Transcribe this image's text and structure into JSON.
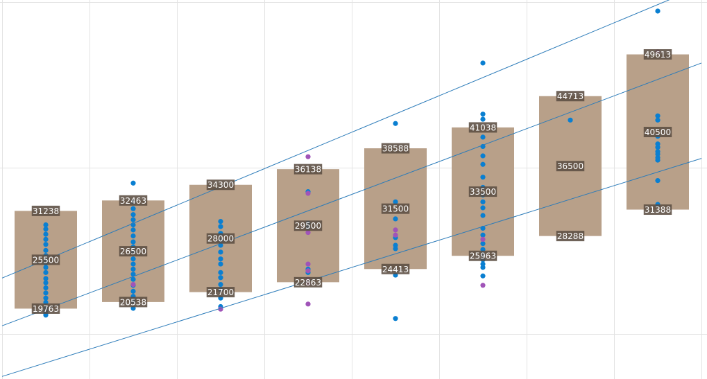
{
  "chart_data": {
    "type": "box-scatter",
    "title": "",
    "xlabel": "",
    "ylabel": "",
    "xlim": [
      0.5,
      8.5
    ],
    "ylim": [
      11500,
      56000
    ],
    "grid": true,
    "colors": {
      "box": "#b8a089",
      "point_primary": "#0a7fd1",
      "point_secondary": "#a054b8",
      "trend": "#2b7bb9",
      "label_bg": "#5b4d42"
    },
    "boxes": [
      {
        "group": 1,
        "q1": 19763,
        "median": 25500,
        "q3": 31238,
        "q1_label": "19763",
        "median_label": "25500",
        "q3_label": "31238"
      },
      {
        "group": 2,
        "q1": 20538,
        "median": 26500,
        "q3": 32463,
        "q1_label": "20538",
        "median_label": "26500",
        "q3_label": "32463"
      },
      {
        "group": 3,
        "q1": 21700,
        "median": 28000,
        "q3": 34300,
        "q1_label": "21700",
        "median_label": "28000",
        "q3_label": "34300"
      },
      {
        "group": 4,
        "q1": 22863,
        "median": 29500,
        "q3": 36138,
        "q1_label": "22863",
        "median_label": "29500",
        "q3_label": "36138"
      },
      {
        "group": 5,
        "q1": 24413,
        "median": 31500,
        "q3": 38588,
        "q1_label": "24413",
        "median_label": "31500",
        "q3_label": "38588"
      },
      {
        "group": 6,
        "q1": 25963,
        "median": 33500,
        "q3": 41038,
        "q1_label": "25963",
        "median_label": "33500",
        "q3_label": "41038"
      },
      {
        "group": 7,
        "q1": 28288,
        "median": 36500,
        "q3": 44713,
        "q1_label": "28288",
        "median_label": "36500",
        "q3_label": "44713"
      },
      {
        "group": 8,
        "q1": 31388,
        "median": 40500,
        "q3": 49613,
        "q1_label": "31388",
        "median_label": "40500",
        "q3_label": "49613"
      }
    ],
    "points": [
      {
        "group": 1,
        "values": [
          19000,
          19200,
          19500,
          19800,
          20500,
          21000,
          21600,
          22200,
          22800,
          23300,
          24000,
          24600,
          25100,
          25500,
          26000,
          26600,
          27300,
          27900,
          28500,
          29100,
          29600
        ],
        "secondary": []
      },
      {
        "group": 2,
        "values": [
          19800,
          20600,
          21200,
          21800,
          22500,
          23200,
          23800,
          24400,
          25000,
          25600,
          26400,
          27000,
          27600,
          28300,
          29000,
          29600,
          30200,
          30800,
          31500,
          32300,
          34500
        ],
        "secondary": [
          22600
        ]
      },
      {
        "group": 3,
        "values": [
          20000,
          21000,
          22000,
          22600,
          23400,
          24000,
          25000,
          25600,
          26400,
          27200,
          27800,
          28600,
          29400,
          30000
        ],
        "secondary": [
          19700
        ]
      },
      {
        "group": 4,
        "values": [
          24000,
          24400,
          29300,
          29800,
          33500
        ],
        "secondary": [
          20300,
          22700,
          23200,
          24200,
          25000,
          28700,
          33300,
          37600
        ]
      },
      {
        "group": 5,
        "values": [
          18600,
          23700,
          26800,
          27200,
          28100,
          30300,
          32300,
          41500
        ],
        "secondary": [
          28400,
          29000
        ]
      },
      {
        "group": 6,
        "values": [
          23600,
          24600,
          25000,
          25500,
          26100,
          26700,
          27400,
          28400,
          29200,
          30700,
          31600,
          32300,
          33100,
          34000,
          35200,
          36700,
          37700,
          38800,
          39900,
          42000,
          42600,
          48600
        ],
        "secondary": [
          22500,
          27900
        ]
      },
      {
        "group": 7,
        "values": [
          41900
        ],
        "secondary": []
      },
      {
        "group": 8,
        "values": [
          32000,
          34800,
          37200,
          37500,
          37900,
          38200,
          38700,
          39100,
          40000,
          41900,
          42400,
          54700
        ],
        "secondary": [
          49900
        ]
      }
    ],
    "trend_lines": [
      {
        "x": [
          0.5,
          8.5
        ],
        "y": [
          23350,
          57600
        ]
      },
      {
        "x": [
          0.5,
          8.5
        ],
        "y": [
          17750,
          48600
        ]
      },
      {
        "x": [
          0.5,
          8.5
        ],
        "y": [
          11800,
          37400
        ]
      }
    ]
  }
}
